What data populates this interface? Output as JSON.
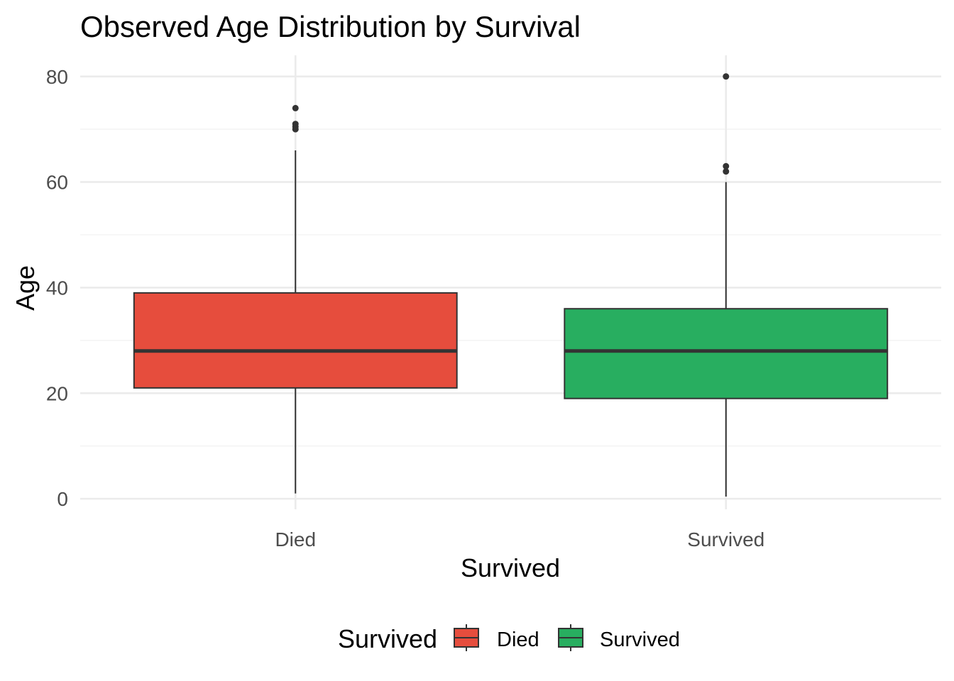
{
  "chart_data": {
    "type": "boxplot",
    "title": "Observed Age Distribution by Survival",
    "xlabel": "Survived",
    "ylabel": "Age",
    "ylim": [
      -2,
      84
    ],
    "y_ticks": [
      0,
      20,
      40,
      60,
      80
    ],
    "y_minor_ticks": [
      10,
      30,
      50,
      70
    ],
    "grid": true,
    "legend": {
      "title": "Survived",
      "position": "bottom",
      "entries": [
        "Died",
        "Survived"
      ]
    },
    "categories": [
      "Died",
      "Survived"
    ],
    "series": [
      {
        "name": "Died",
        "color": "#e64d3d",
        "whisker_low": 1,
        "q1": 21,
        "median": 28,
        "q3": 39,
        "whisker_high": 66,
        "outliers": [
          70,
          70.5,
          71,
          74
        ]
      },
      {
        "name": "Survived",
        "color": "#28ae60",
        "whisker_low": 0.42,
        "q1": 19,
        "median": 28,
        "q3": 36,
        "whisker_high": 60,
        "outliers": [
          62,
          63,
          80
        ]
      }
    ]
  }
}
